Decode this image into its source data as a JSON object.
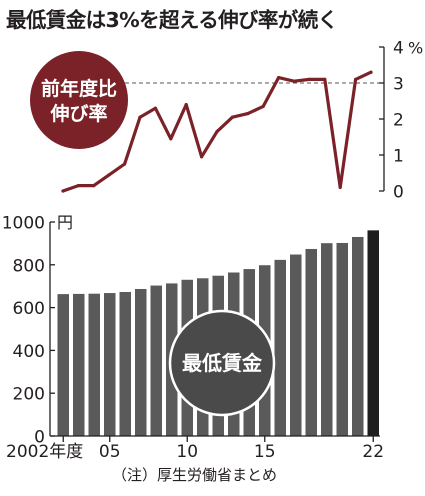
{
  "title": "最低賃金は3%を超える伸び率が続く",
  "note": "（注）厚生労働省まとめ",
  "colors": {
    "line": "#7a2228",
    "badge": "#7a2228",
    "bar": "#5a5a5a",
    "bar_last": "#1e1e1e",
    "axis": "#231f20"
  },
  "chart_data": [
    {
      "type": "line",
      "label": "前年度比\n伸び率",
      "unit": "%",
      "x": [
        2002,
        2003,
        2004,
        2005,
        2006,
        2007,
        2008,
        2009,
        2010,
        2011,
        2012,
        2013,
        2014,
        2015,
        2016,
        2017,
        2018,
        2019,
        2020,
        2021,
        2022
      ],
      "values": [
        0.0,
        0.15,
        0.15,
        0.45,
        0.75,
        2.05,
        2.3,
        1.45,
        2.4,
        0.95,
        1.65,
        2.05,
        2.15,
        2.35,
        3.15,
        3.05,
        3.1,
        3.1,
        0.1,
        3.1,
        3.3
      ],
      "reference_line": 3,
      "ylim": [
        0,
        4
      ],
      "yticks": [
        "0",
        "1",
        "2",
        "3",
        "4"
      ],
      "grid": false,
      "axis_side": "right"
    },
    {
      "type": "bar",
      "label": "最低賃金",
      "unit": "円",
      "x": [
        2002,
        2003,
        2004,
        2005,
        2006,
        2007,
        2008,
        2009,
        2010,
        2011,
        2012,
        2013,
        2014,
        2015,
        2016,
        2017,
        2018,
        2019,
        2020,
        2021,
        2022
      ],
      "values": [
        663,
        664,
        665,
        668,
        673,
        687,
        703,
        713,
        730,
        737,
        749,
        764,
        780,
        798,
        823,
        848,
        874,
        901,
        902,
        930,
        961
      ],
      "ylim": [
        0,
        1000
      ],
      "yticks": [
        "0",
        "200",
        "400",
        "600",
        "800",
        "1000"
      ],
      "xticks": [
        {
          "year": 2002,
          "label": "2002年度"
        },
        {
          "year": 2005,
          "label": "05"
        },
        {
          "year": 2010,
          "label": "10"
        },
        {
          "year": 2015,
          "label": "15"
        },
        {
          "year": 2022,
          "label": "22"
        }
      ],
      "grid": false,
      "axis_side": "left"
    }
  ]
}
